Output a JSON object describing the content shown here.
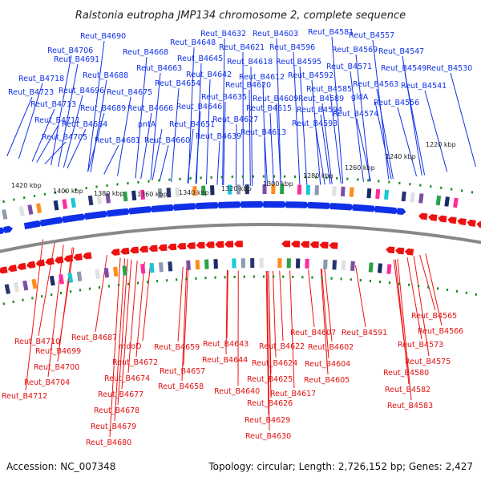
{
  "title": "Ralstonia eutropha JMP134 chromosome 2, complete sequence",
  "footer": {
    "accession": "Accession: NC_007348",
    "summary": "Topology: circular; Length: 2,726,152 bp; Genes: 2,427"
  },
  "colors": {
    "forward_strand": "#1030e8",
    "reverse_strand": "#ee1111",
    "tick_marks": "#1a8c1a",
    "backbone": "#888888",
    "text": "#222222"
  },
  "ticks": [
    "1420 kbp",
    "1400 kbp",
    "1380 kbp",
    "1360 kbp",
    "1340 kbp",
    "1320 kbp",
    "1300 kbp",
    "1280 kbp",
    "1260 kbp",
    "1240 kbp",
    "1220 kbp"
  ],
  "top_labels": [
    "Reut_B4690",
    "Reut_B4706",
    "Reut_B4691",
    "Reut_B4718",
    "Reut_B4688",
    "Reut_B4723",
    "Reut_B4696",
    "Reut_B4713",
    "Reut_B4689",
    "Reut_B4711",
    "Reut_B4684",
    "Reut_B4705",
    "Reut_B4681",
    "Reut_B4668",
    "Reut_B4663",
    "Reut_B4675",
    "Reut_B4666",
    "pntA",
    "Reut_B4660",
    "Reut_B4648",
    "Reut_B4645",
    "Reut_B4642",
    "Reut_B4654",
    "Reut_B4646",
    "Reut_B4651",
    "Reut_B4632",
    "Reut_B4621",
    "Reut_B4618",
    "Reut_B4612",
    "Reut_B4620",
    "Reut_B4635",
    "Reut_B4627",
    "Reut_B4639",
    "Reut_B4603",
    "Reut_B4596",
    "Reut_B4595",
    "Reut_B4609",
    "Reut_B4615",
    "Reut_B4613",
    "Reut_B4581",
    "Reut_B4592",
    "Reut_B4585",
    "Reut_B4589",
    "Reut_B4594",
    "Reut_B4593",
    "Reut_B4557",
    "Reut_B4569",
    "Reut_B4571",
    "Reut_B4563",
    "gldA",
    "Reut_B4574",
    "Reut_B4547",
    "Reut_B4549",
    "Reut_B4530",
    "Reut_B4541",
    "Reut_B4556"
  ],
  "bottom_labels": [
    "Reut_B4710",
    "Reut_B4699",
    "Reut_B4700",
    "Reut_B4704",
    "Reut_B4712",
    "Reut_B4687",
    "mdoD",
    "Reut_B4672",
    "Reut_B4674",
    "Reut_B4677",
    "Reut_B4678",
    "Reut_B4679",
    "Reut_B4680",
    "Reut_B4659",
    "Reut_B4657",
    "Reut_B4658",
    "Reut_B4643",
    "Reut_B4644",
    "Reut_B4640",
    "Reut_B4622",
    "Reut_B4624",
    "Reut_B4625",
    "Reut_B4626",
    "Reut_B4617",
    "Reut_B4629",
    "Reut_B4630",
    "Reut_B4607",
    "Reut_B4602",
    "Reut_B4604",
    "Reut_B4605",
    "Reut_B4591",
    "Reut_B4565",
    "Reut_B4566",
    "Reut_B4573",
    "Reut_B4575",
    "Reut_B4580",
    "Reut_B4582",
    "Reut_B4583"
  ]
}
